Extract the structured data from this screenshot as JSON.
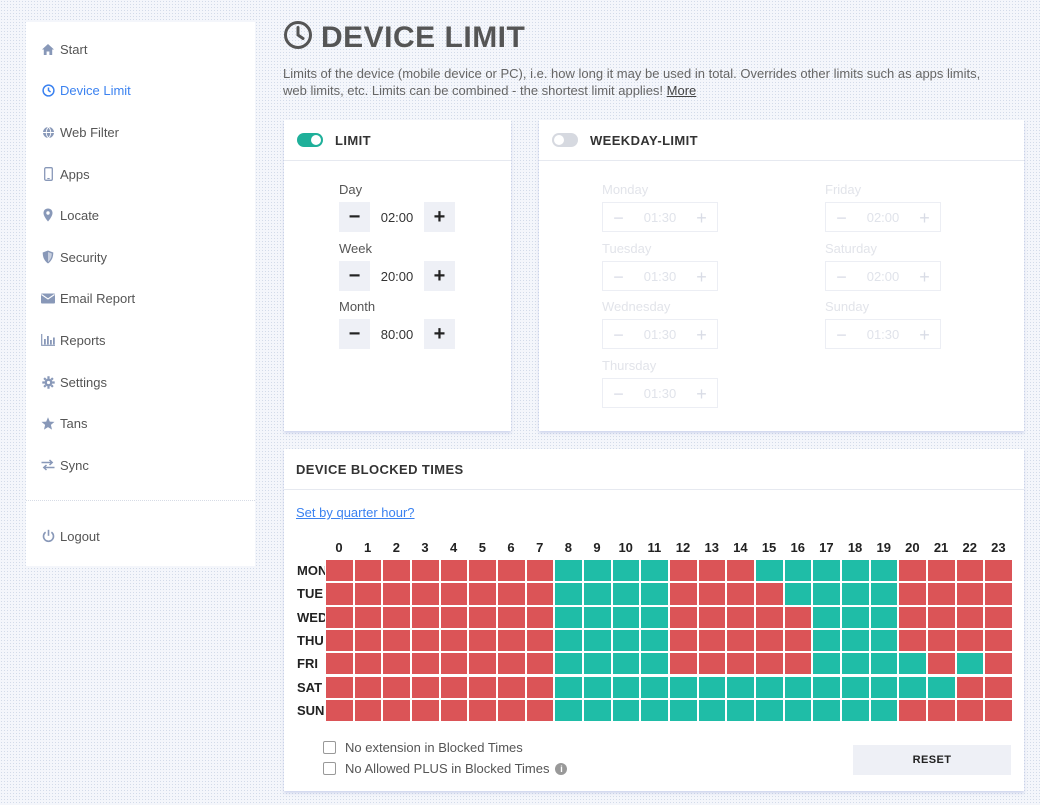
{
  "sidebar": {
    "items": [
      {
        "label": "Start",
        "icon": "home-icon"
      },
      {
        "label": "Device Limit",
        "icon": "clock-icon",
        "active": true
      },
      {
        "label": "Web Filter",
        "icon": "globe-icon"
      },
      {
        "label": "Apps",
        "icon": "phone-icon"
      },
      {
        "label": "Locate",
        "icon": "map-pin-icon"
      },
      {
        "label": "Security",
        "icon": "shield-icon"
      },
      {
        "label": "Email Report",
        "icon": "envelope-icon"
      },
      {
        "label": "Reports",
        "icon": "bar-chart-icon"
      },
      {
        "label": "Settings",
        "icon": "gear-icon"
      },
      {
        "label": "Tans",
        "icon": "star-icon"
      },
      {
        "label": "Sync",
        "icon": "sync-icon"
      }
    ],
    "logout": {
      "label": "Logout",
      "icon": "power-icon"
    }
  },
  "header": {
    "title": "DEVICE LIMIT",
    "description": "Limits of the device (mobile device or PC), i.e. how long it may be used in total. Overrides other limits such as apps limits, web limits, etc. Limits can be combined - the shortest limit applies!",
    "more_link": "More"
  },
  "limit": {
    "title": "LIMIT",
    "enabled": true,
    "fields": [
      {
        "label": "Day",
        "value": "02:00"
      },
      {
        "label": "Week",
        "value": "20:00"
      },
      {
        "label": "Month",
        "value": "80:00"
      }
    ]
  },
  "weekday_limit": {
    "title": "WEEKDAY-LIMIT",
    "enabled": false,
    "days": [
      {
        "label": "Monday",
        "value": "01:30"
      },
      {
        "label": "Tuesday",
        "value": "01:30"
      },
      {
        "label": "Wednesday",
        "value": "01:30"
      },
      {
        "label": "Thursday",
        "value": "01:30"
      },
      {
        "label": "Friday",
        "value": "02:00"
      },
      {
        "label": "Saturday",
        "value": "02:00"
      },
      {
        "label": "Sunday",
        "value": "01:30"
      }
    ]
  },
  "blocked_times": {
    "title": "DEVICE BLOCKED TIMES",
    "quarter_link": "Set by quarter hour?",
    "hours": [
      "0",
      "1",
      "2",
      "3",
      "4",
      "5",
      "6",
      "7",
      "8",
      "9",
      "10",
      "11",
      "12",
      "13",
      "14",
      "15",
      "16",
      "17",
      "18",
      "19",
      "20",
      "21",
      "22",
      "23"
    ],
    "days": [
      "MON",
      "TUE",
      "WED",
      "THU",
      "FRI",
      "SAT",
      "SUN"
    ],
    "grid": [
      "BBBBBBBBAAAABBBAAAAABBBB",
      "BBBBBBBBAAAABBBBAAAABBBB",
      "BBBBBBBBAAAABBBBBAAABBBB",
      "BBBBBBBBAAAABBBBBAAABBBB",
      "BBBBBBBBAAAABBBBBAAAABAB",
      "BBBBBBBBAAAAAAAAAAAAAABB",
      "BBBBBBBBAAAAAAAAAAAABBBB"
    ],
    "legend": {
      "blocked_color": "#db5457",
      "allowed_color": "#1fbda7"
    },
    "option_no_extension": "No extension in Blocked Times",
    "option_no_plus": "No Allowed PLUS in Blocked Times",
    "reset_label": "RESET"
  },
  "colors": {
    "accent": "#3b82f0",
    "toggle_on": "#1fb09a"
  }
}
